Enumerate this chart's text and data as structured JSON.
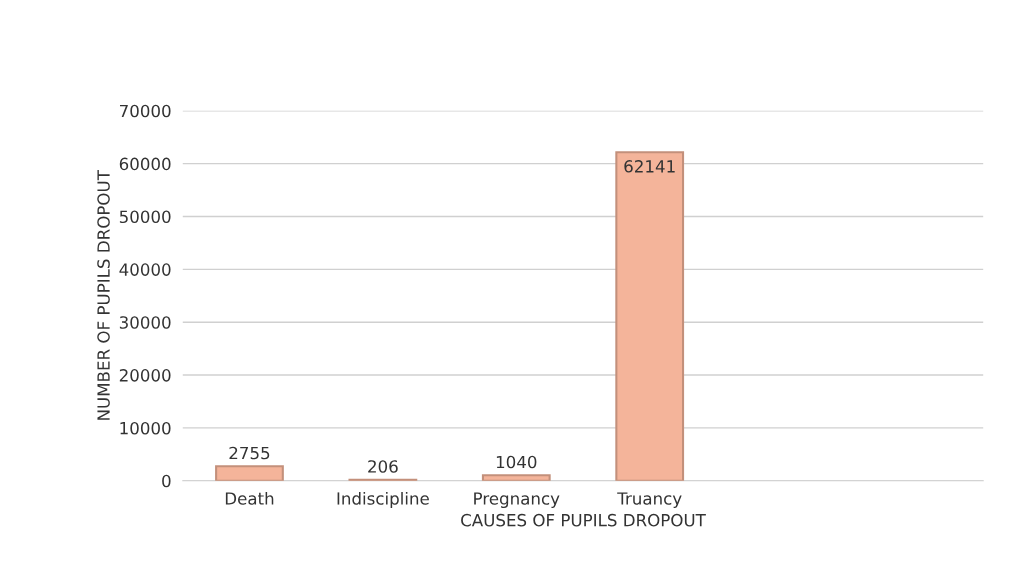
{
  "chart_data": {
    "type": "bar",
    "xlabel": "CAUSES OF PUPILS DROPOUT",
    "ylabel": "NUMBER OF PUPILS DROPOUT",
    "categories": [
      "Death",
      "Indiscipline",
      "Pregnancy",
      "Truancy",
      null,
      null
    ],
    "values": [
      2755,
      206,
      1040,
      62141,
      null,
      null
    ],
    "color": "#f4b49a",
    "ylim": [
      0,
      70000
    ],
    "yticks": [
      0,
      10000,
      20000,
      30000,
      40000,
      50000,
      60000,
      70000
    ],
    "grid": "y",
    "legend": false,
    "data_labels": true
  }
}
